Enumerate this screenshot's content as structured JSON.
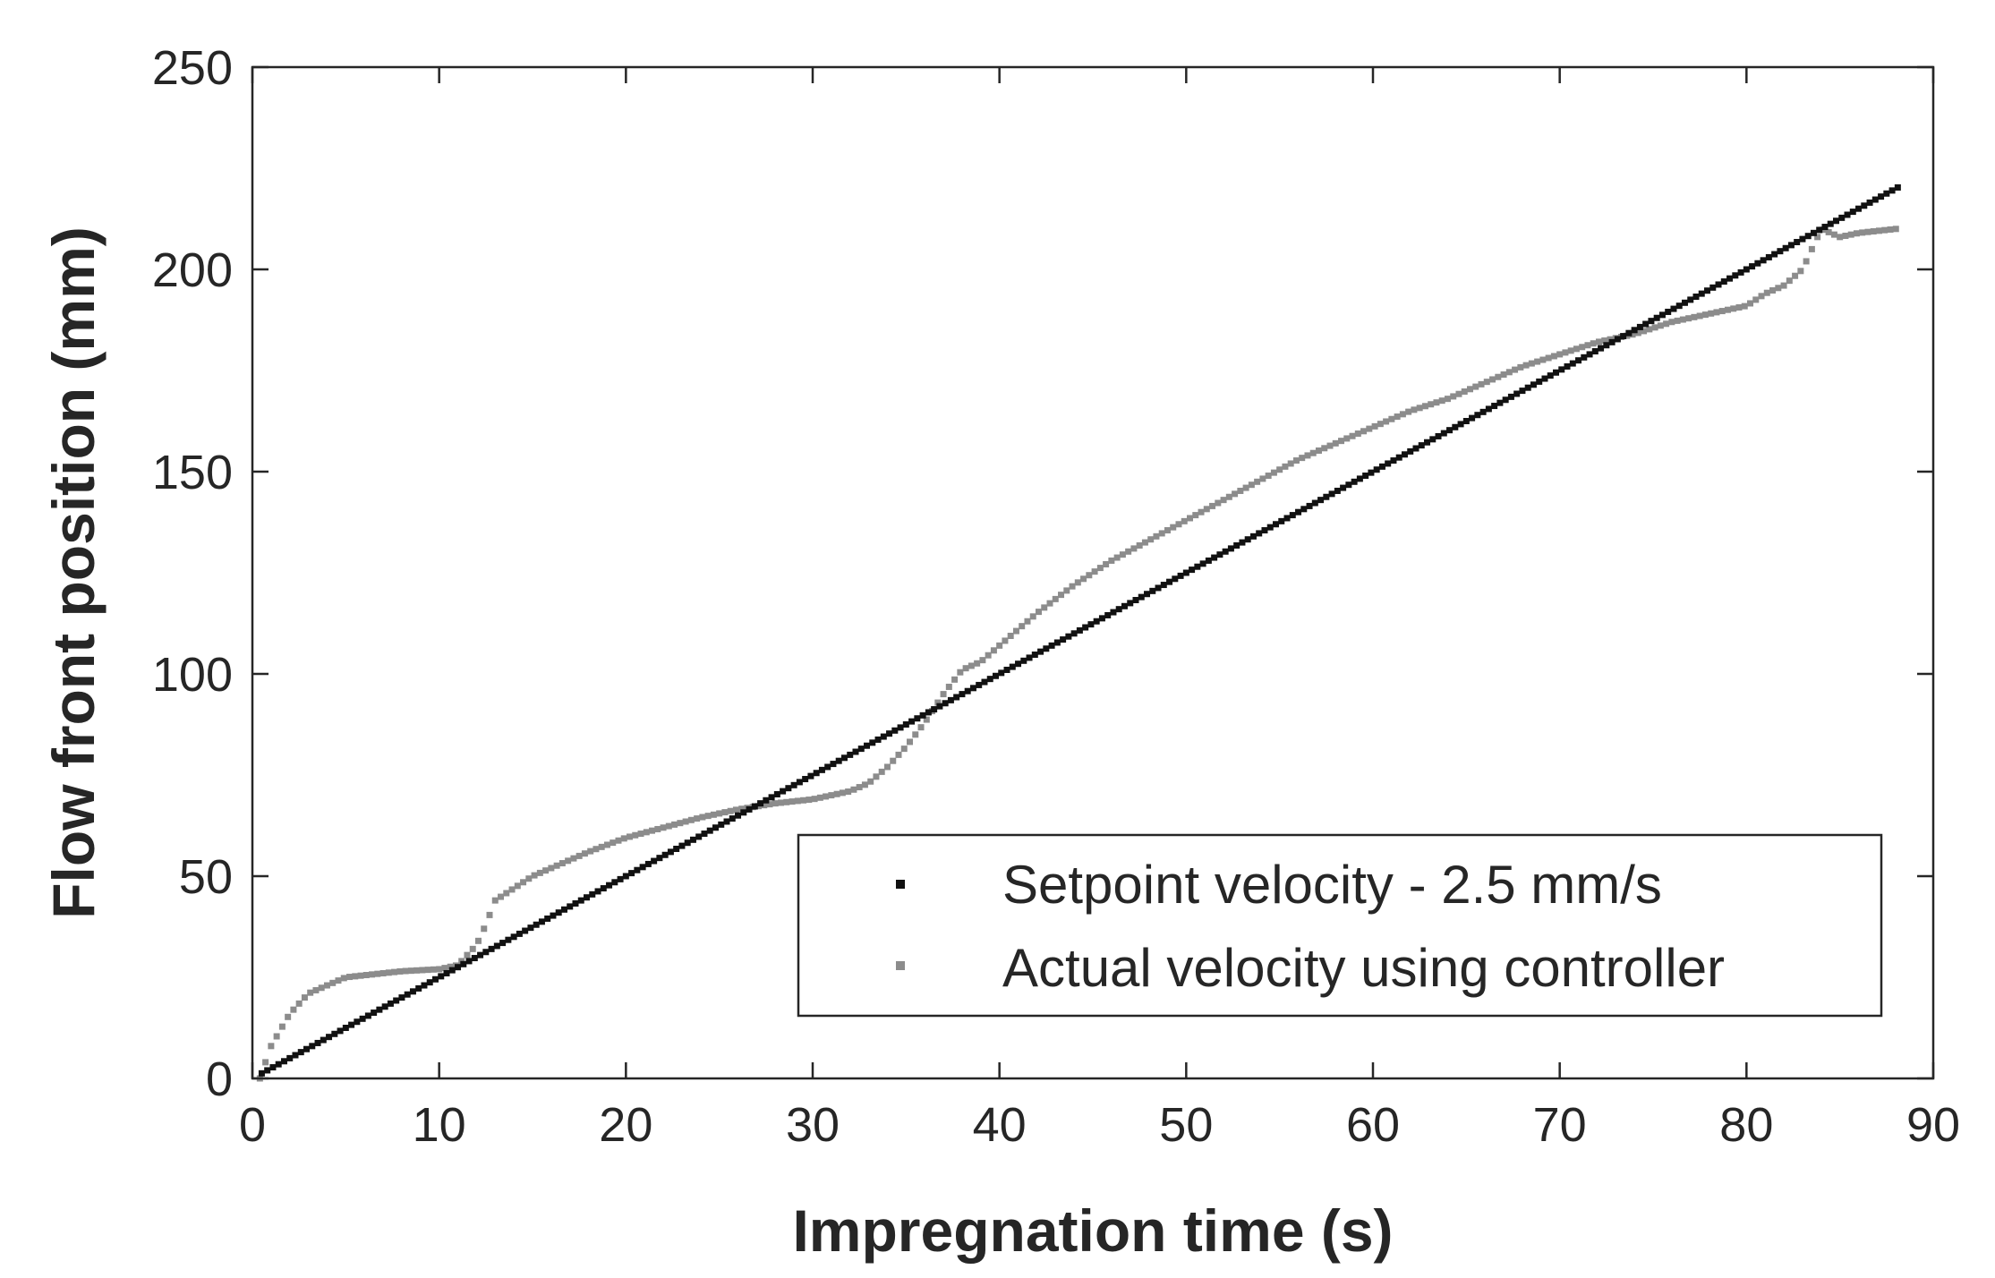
{
  "chart_data": {
    "type": "scatter",
    "title": "",
    "xlabel": "Impregnation time (s)",
    "ylabel": "Flow front position (mm)",
    "xlim": [
      0,
      90
    ],
    "ylim": [
      0,
      250
    ],
    "x_ticks": [
      0,
      10,
      20,
      30,
      40,
      50,
      60,
      70,
      80,
      90
    ],
    "y_ticks": [
      0,
      50,
      100,
      150,
      200,
      250
    ],
    "x_tick_labels": [
      "0",
      "10",
      "20",
      "30",
      "40",
      "50",
      "60",
      "70",
      "80",
      "90"
    ],
    "y_tick_labels": [
      "0",
      "50",
      "100",
      "150",
      "200",
      "250"
    ],
    "grid": false,
    "legend_position": "bottom-right",
    "series": [
      {
        "name": "Setpoint velocity - 2.5 mm/s",
        "color": "#111111",
        "marker": "square",
        "x_start": 0.5,
        "x_end": 88.2,
        "x_step": 0.3,
        "slope": 2.5,
        "intercept": 0
      },
      {
        "name": "Actual velocity using controller",
        "color": "#8c8c8c",
        "marker": "square",
        "x_step": 0.3,
        "x": [
          0.4,
          1,
          2,
          3,
          4,
          5,
          6,
          8,
          10,
          11,
          12,
          12.5,
          13,
          14,
          15,
          16,
          18,
          20,
          22,
          24,
          26,
          28,
          30,
          32,
          33,
          34,
          35,
          36,
          37,
          38,
          39,
          40,
          42,
          44,
          46,
          48,
          50,
          52,
          54,
          56,
          58,
          60,
          62,
          64,
          66,
          68,
          70,
          72,
          74,
          76,
          78,
          80,
          81,
          82,
          83,
          84,
          85,
          86,
          88
        ],
        "y": [
          0,
          8,
          16,
          21,
          23,
          25,
          25.5,
          26.5,
          27,
          28,
          33,
          38,
          44,
          47,
          50,
          52,
          56,
          59.5,
          62,
          64.5,
          66.5,
          68,
          69,
          71,
          73,
          77,
          82,
          88,
          95,
          101,
          103,
          107,
          115,
          122,
          128,
          133,
          138,
          143,
          148,
          153,
          157,
          161,
          165,
          168,
          172,
          176,
          179,
          182,
          184,
          187,
          189,
          191,
          194,
          196,
          200,
          210,
          208,
          209,
          210
        ]
      }
    ]
  }
}
